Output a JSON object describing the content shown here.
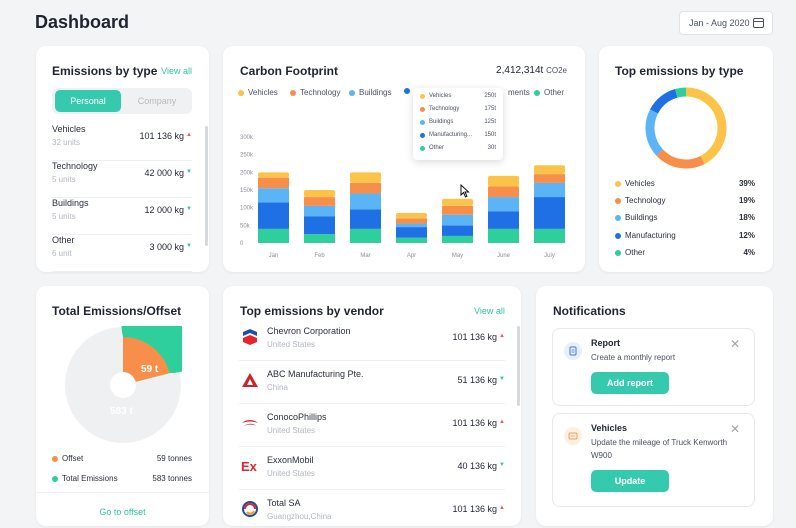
{
  "header": {
    "title": "Dashboard",
    "date_range": "Jan - Aug 2020"
  },
  "emissions_by_type": {
    "title": "Emissions by type",
    "view_all": "View all",
    "tabs": [
      "Personal",
      "Company"
    ],
    "rows": [
      {
        "name": "Vehicles",
        "units": "32 units",
        "value": "101 136 kg",
        "trend": "up"
      },
      {
        "name": "Technology",
        "units": "5 units",
        "value": "42 000 kg",
        "trend": "down"
      },
      {
        "name": "Buildings",
        "units": "5 units",
        "value": "12 000 kg",
        "trend": "down"
      },
      {
        "name": "Other",
        "units": "6 unit",
        "value": "3 000 kg",
        "trend": "down"
      }
    ]
  },
  "carbon_footprint": {
    "title": "Carbon Footprint",
    "total": "2,412,314t",
    "unit": "CO2e",
    "legend": [
      "Vehicles",
      "Technology",
      "Buildings",
      "Manufacturing",
      "Other"
    ],
    "legend_partial": "ments",
    "tooltip": [
      {
        "name": "Vehicles",
        "value": "250t"
      },
      {
        "name": "Technology",
        "value": "175t"
      },
      {
        "name": "Buildings",
        "value": "125t"
      },
      {
        "name": "Manufacturing...",
        "value": "150t"
      },
      {
        "name": "Other",
        "value": "30t"
      }
    ]
  },
  "chart_data": {
    "type": "bar",
    "stacked": true,
    "title": "Carbon Footprint",
    "categories": [
      "Jan",
      "Feb",
      "Mar",
      "Apr",
      "May",
      "June",
      "July"
    ],
    "y_ticks": [
      "0",
      "50k",
      "100k",
      "150k",
      "200k",
      "250k",
      "300k"
    ],
    "ylim": [
      0,
      300000
    ],
    "colors": [
      "#2ecf9a",
      "#1f6fe5",
      "#5bb4f5",
      "#f78f4a",
      "#fbc448"
    ],
    "series": [
      {
        "name": "Other",
        "values": [
          40000,
          25000,
          40000,
          15000,
          20000,
          40000,
          40000
        ]
      },
      {
        "name": "Manufacturing",
        "values": [
          75000,
          50000,
          55000,
          30000,
          30000,
          50000,
          90000
        ]
      },
      {
        "name": "Buildings",
        "values": [
          40000,
          30000,
          45000,
          10000,
          30000,
          40000,
          40000
        ]
      },
      {
        "name": "Technology",
        "values": [
          30000,
          25000,
          30000,
          15000,
          25000,
          30000,
          25000
        ]
      },
      {
        "name": "Vehicles",
        "values": [
          15000,
          20000,
          30000,
          15000,
          20000,
          30000,
          25000
        ]
      }
    ],
    "grid": false
  },
  "top_emissions_by_type": {
    "title": "Top emissions by type",
    "rows": [
      {
        "name": "Vehicles",
        "pct": "39%",
        "color": "#fbc448"
      },
      {
        "name": "Technology",
        "pct": "19%",
        "color": "#f78f4a"
      },
      {
        "name": "Buildings",
        "pct": "18%",
        "color": "#5bb4f5"
      },
      {
        "name": "Manufacturing",
        "pct": "12%",
        "color": "#1f6fe5"
      },
      {
        "name": "Other",
        "pct": "4%",
        "color": "#2ecf9a"
      }
    ]
  },
  "total_offset": {
    "title": "Total Emissions/Offset",
    "offset_label": "59 t",
    "total_label": "583 t",
    "legend": [
      {
        "name": "Offset",
        "value": "59 tonnes",
        "color": "#f78f4a"
      },
      {
        "name": "Total Emissions",
        "value": "583 tonnes",
        "color": "#2ecf9a"
      }
    ],
    "go_to_offset": "Go to offset"
  },
  "vendors": {
    "title": "Top emissions by vendor",
    "view_all": "View all",
    "rows": [
      {
        "name": "Chevron Corporation",
        "country": "United States",
        "value": "101 136 kg",
        "trend": "up"
      },
      {
        "name": "ABC Manufacturing Pte.",
        "country": "China",
        "value": "51 136 kg",
        "trend": "down"
      },
      {
        "name": "ConocoPhillips",
        "country": "United States",
        "value": "101 136 kg",
        "trend": "up"
      },
      {
        "name": "ExxonMobil",
        "country": "United States",
        "value": "40 136 kg",
        "trend": "down"
      },
      {
        "name": "Total SA",
        "country": "Guangzhou,China",
        "value": "101 136 kg",
        "trend": "up"
      }
    ]
  },
  "notifications": {
    "title": "Notifications",
    "items": [
      {
        "title": "Report",
        "desc": "Create a monthly report",
        "button": "Add report"
      },
      {
        "title": "Vehicles",
        "desc": "Update the mileage of Truck Kenworth W900",
        "button": "Update"
      }
    ]
  }
}
